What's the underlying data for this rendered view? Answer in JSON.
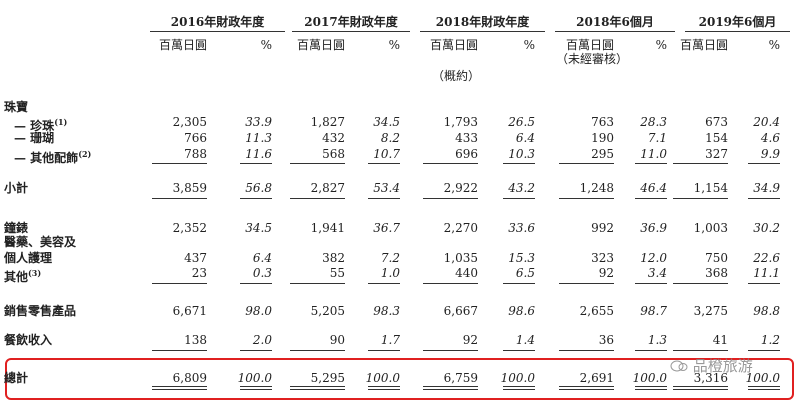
{
  "table": {
    "periods": [
      {
        "title": "2016年財政年度",
        "amount_header": "百萬日圓",
        "percent_header": "%"
      },
      {
        "title": "2017年財政年度",
        "amount_header": "百萬日圓",
        "percent_header": "%"
      },
      {
        "title": "2018年財政年度",
        "amount_header": "百萬日圓",
        "percent_header": "%",
        "note": "（概約）"
      },
      {
        "title": "2018年6個月",
        "amount_header": "百萬日圓",
        "percent_header": "%",
        "note": "（未經審核）"
      },
      {
        "title": "2019年6個月",
        "amount_header": "百萬日圓",
        "percent_header": "%"
      }
    ],
    "rows": [
      {
        "label": "珠寶"
      },
      {
        "label": "— 珍珠",
        "note": "(1)",
        "values": [
          "2,305",
          "33.9",
          "1,827",
          "34.5",
          "1,793",
          "26.5",
          "763",
          "28.3",
          "673",
          "20.4"
        ]
      },
      {
        "label": "— 珊瑚",
        "values": [
          "766",
          "11.3",
          "432",
          "8.2",
          "433",
          "6.4",
          "190",
          "7.1",
          "154",
          "4.6"
        ]
      },
      {
        "label": "— 其他配飾",
        "note": "(2)",
        "values": [
          "788",
          "11.6",
          "568",
          "10.7",
          "696",
          "10.3",
          "295",
          "11.0",
          "327",
          "9.9"
        ]
      },
      {
        "label": "小計",
        "values": [
          "3,859",
          "56.8",
          "2,827",
          "53.4",
          "2,922",
          "43.2",
          "1,248",
          "46.4",
          "1,154",
          "34.9"
        ]
      },
      {
        "label": "鐘錶",
        "values": [
          "2,352",
          "34.5",
          "1,941",
          "36.7",
          "2,270",
          "33.6",
          "992",
          "36.9",
          "1,003",
          "30.2"
        ]
      },
      {
        "label": "醫藥、美容及",
        "label_2": "個人護理",
        "values": [
          "437",
          "6.4",
          "382",
          "7.2",
          "1,035",
          "15.3",
          "323",
          "12.0",
          "750",
          "22.6"
        ]
      },
      {
        "label": "其他",
        "note": "(3)",
        "values": [
          "23",
          "0.3",
          "55",
          "1.0",
          "440",
          "6.5",
          "92",
          "3.4",
          "368",
          "11.1"
        ]
      },
      {
        "label": "銷售零售產品",
        "values": [
          "6,671",
          "98.0",
          "5,205",
          "98.3",
          "6,667",
          "98.6",
          "2,655",
          "98.7",
          "3,275",
          "98.8"
        ]
      },
      {
        "label": "餐飲收入",
        "values": [
          "138",
          "2.0",
          "90",
          "1.7",
          "92",
          "1.4",
          "36",
          "1.3",
          "41",
          "1.2"
        ]
      },
      {
        "label": "總計",
        "values": [
          "6,809",
          "100.0",
          "5,295",
          "100.0",
          "6,759",
          "100.0",
          "2,691",
          "100.0",
          "3,316",
          "100.0"
        ]
      }
    ]
  },
  "watermark": "品橙旅游"
}
